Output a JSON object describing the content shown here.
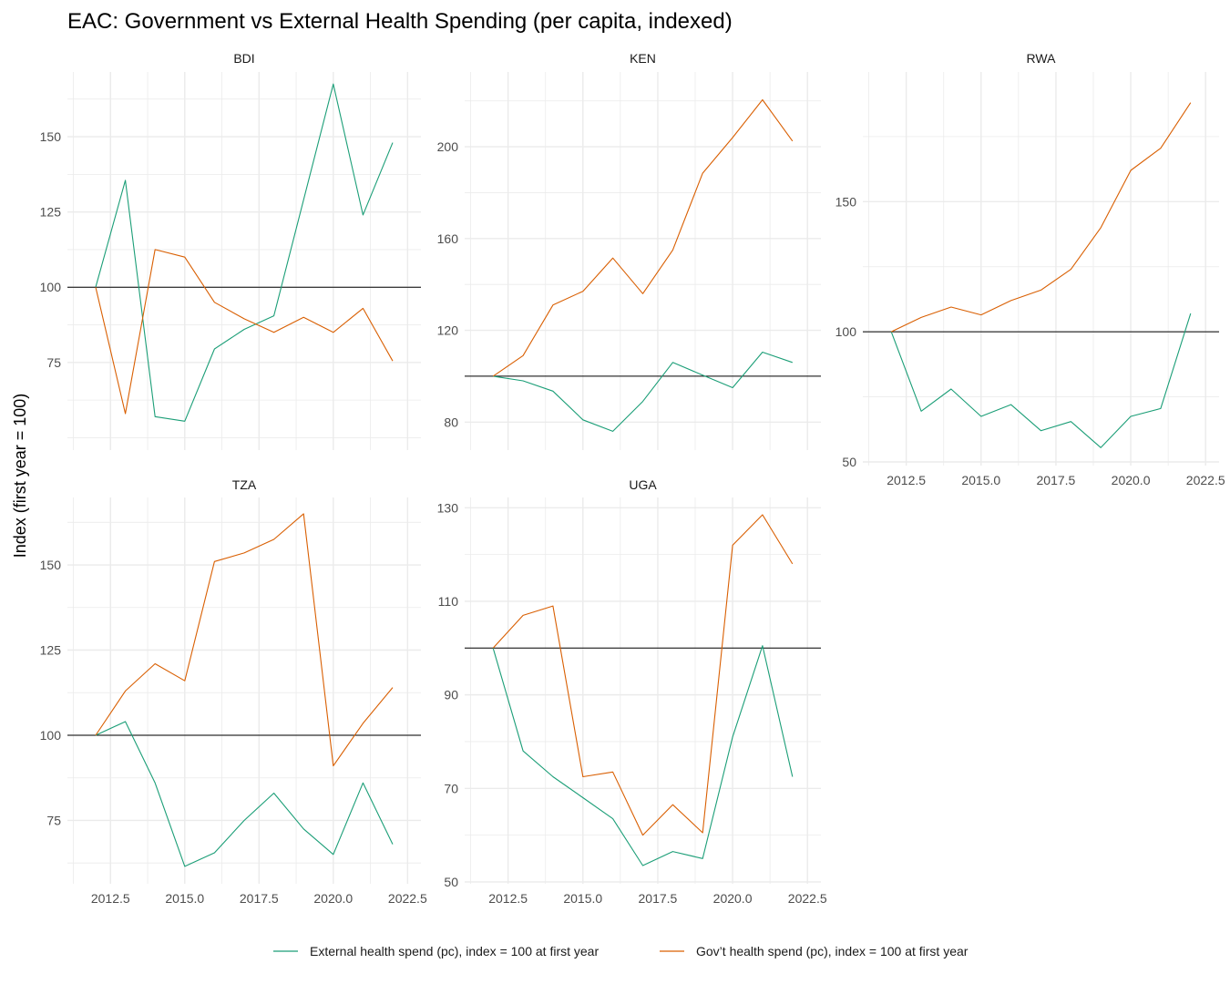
{
  "chart_data": {
    "type": "line",
    "title": "EAC: Government vs External Health Spending (per capita, indexed)",
    "xlabel": "",
    "ylabel": "Index (first year = 100)",
    "reference_line": 100,
    "grid": true,
    "legend_position": "bottom",
    "colors": {
      "External": "#1b9e77",
      "Gov": "#d95f02",
      "reference": "#000000",
      "grid": "#ebebeb"
    },
    "legend": [
      {
        "key": "External",
        "label": "External health spend (pc), index = 100 at first year"
      },
      {
        "key": "Gov",
        "label": "Gov’t health spend (pc), index = 100 at first year"
      }
    ],
    "x": [
      2012,
      2013,
      2014,
      2015,
      2016,
      2017,
      2018,
      2019,
      2020,
      2021,
      2022
    ],
    "panels": [
      {
        "name": "BDI",
        "xlim": [
          2011.05,
          2022.95
        ],
        "ylim": [
          45.9,
          171.5
        ],
        "xticks": [
          "2012.5",
          "2015.0",
          "2017.5",
          "2020.0",
          "2022.5"
        ],
        "show_xticks": false,
        "yticks": [
          "75",
          "100",
          "125",
          "150"
        ],
        "series": [
          {
            "key": "External",
            "values": [
              100,
              135.5,
              57.0,
              55.5,
              79.5,
              86.0,
              90.5,
              129.0,
              167.5,
              124.0,
              148.0
            ]
          },
          {
            "key": "Gov",
            "values": [
              100,
              58.0,
              112.5,
              110.0,
              95.0,
              89.5,
              85.0,
              90.0,
              85.0,
              93.0,
              75.5
            ]
          }
        ]
      },
      {
        "name": "KEN",
        "xlim": [
          2011.05,
          2022.95
        ],
        "ylim": [
          67.8,
          232.6
        ],
        "xticks": [
          "2012.5",
          "2015.0",
          "2017.5",
          "2020.0",
          "2022.5"
        ],
        "show_xticks": false,
        "yticks": [
          "80",
          "120",
          "160",
          "200"
        ],
        "series": [
          {
            "key": "External",
            "values": [
              100,
              98.0,
              93.5,
              81.0,
              76.0,
              89.0,
              106.0,
              100.5,
              95.0,
              110.5,
              106.0
            ]
          },
          {
            "key": "Gov",
            "values": [
              100,
              109.0,
              131.0,
              137.0,
              151.5,
              136.0,
              155.0,
              188.5,
              204.0,
              220.5,
              202.5
            ]
          }
        ]
      },
      {
        "name": "RWA",
        "xlim": [
          2011.05,
          2022.95
        ],
        "ylim": [
          48.6,
          199.8
        ],
        "xticks": [
          "2012.5",
          "2015.0",
          "2017.5",
          "2020.0",
          "2022.5"
        ],
        "show_xticks": true,
        "yticks": [
          "50",
          "100",
          "150"
        ],
        "series": [
          {
            "key": "External",
            "values": [
              100,
              69.5,
              78.0,
              67.5,
              72.0,
              62.0,
              65.5,
              55.5,
              67.5,
              70.5,
              107.0
            ]
          },
          {
            "key": "Gov",
            "values": [
              100,
              105.5,
              109.5,
              106.5,
              112.0,
              116.0,
              124.0,
              140.0,
              162.0,
              170.5,
              188.0
            ]
          }
        ]
      },
      {
        "name": "TZA",
        "xlim": [
          2011.05,
          2022.95
        ],
        "ylim": [
          56.4,
          169.8
        ],
        "xticks": [
          "2012.5",
          "2015.0",
          "2017.5",
          "2020.0",
          "2022.5"
        ],
        "show_xticks": true,
        "yticks": [
          "75",
          "100",
          "125",
          "150"
        ],
        "series": [
          {
            "key": "External",
            "values": [
              100,
              104.0,
              86.0,
              61.5,
              65.5,
              75.0,
              83.0,
              72.5,
              65.0,
              86.0,
              68.0
            ]
          },
          {
            "key": "Gov",
            "values": [
              100,
              113.0,
              121.0,
              116.0,
              151.0,
              153.5,
              157.5,
              165.0,
              91.0,
              103.5,
              114.0
            ]
          }
        ]
      },
      {
        "name": "UGA",
        "xlim": [
          2011.05,
          2022.95
        ],
        "ylim": [
          49.6,
          132.2
        ],
        "xticks": [
          "2012.5",
          "2015.0",
          "2017.5",
          "2020.0",
          "2022.5"
        ],
        "show_xticks": true,
        "yticks": [
          "50",
          "70",
          "90",
          "110",
          "130"
        ],
        "series": [
          {
            "key": "External",
            "values": [
              100,
              78.0,
              72.5,
              68.0,
              63.5,
              53.5,
              56.5,
              55.0,
              81.0,
              100.5,
              72.5
            ]
          },
          {
            "key": "Gov",
            "values": [
              100,
              107.0,
              109.0,
              72.5,
              73.5,
              60.0,
              66.5,
              60.5,
              122.0,
              128.5,
              118.0
            ]
          }
        ]
      }
    ]
  }
}
